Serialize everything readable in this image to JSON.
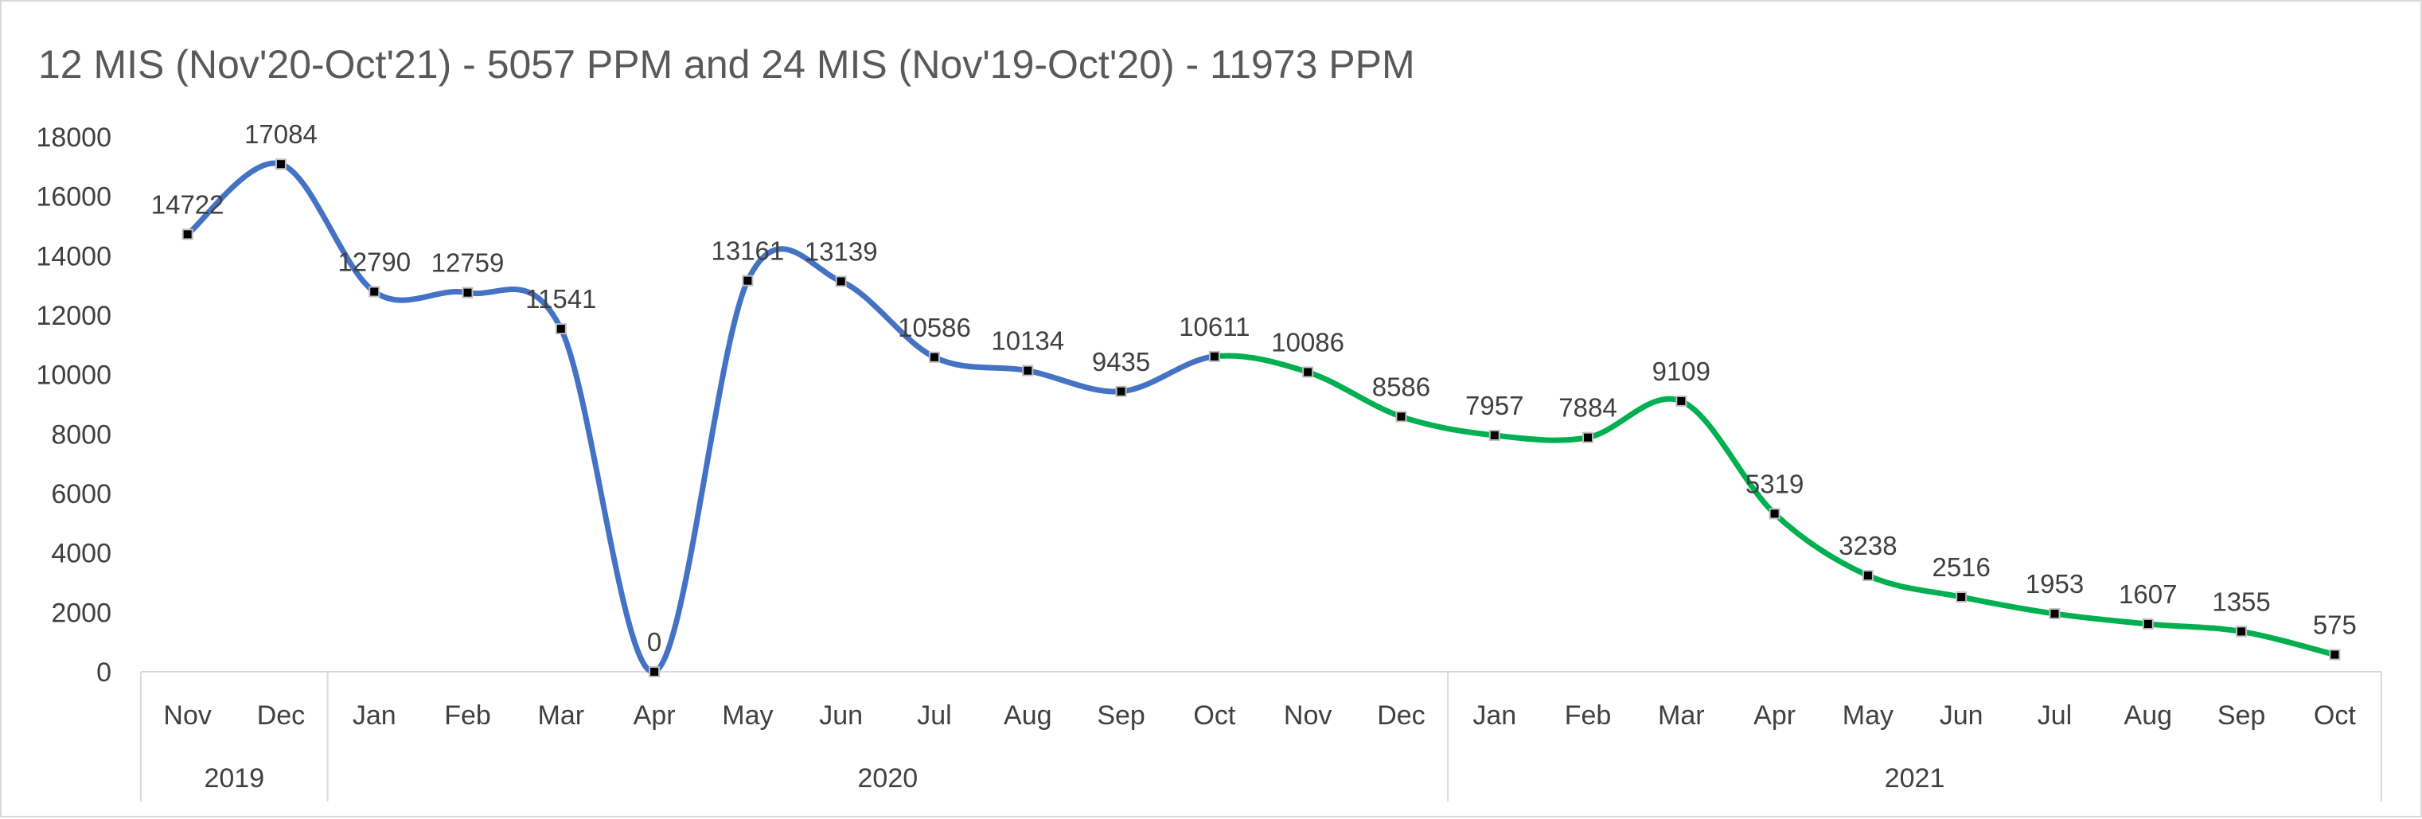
{
  "chart_data": {
    "type": "line",
    "title": "12 MIS (Nov'20-Oct'21) - 5057 PPM and 24 MIS (Nov'19-Oct'20) - 11973 PPM",
    "xlabel": "",
    "ylabel": "",
    "ylim": [
      0,
      18000
    ],
    "yticks": [
      "0",
      "2000",
      "4000",
      "6000",
      "8000",
      "10000",
      "12000",
      "14000",
      "16000",
      "18000"
    ],
    "grid": false,
    "legend": "none",
    "smooth": true,
    "categories": [
      "Nov",
      "Dec",
      "Jan",
      "Feb",
      "Mar",
      "Apr",
      "May",
      "Jun",
      "Jul",
      "Aug",
      "Sep",
      "Oct",
      "Nov",
      "Dec",
      "Jan",
      "Feb",
      "Mar",
      "Apr",
      "May",
      "Jun",
      "Jul",
      "Aug",
      "Sep",
      "Oct"
    ],
    "year_groups": [
      {
        "label": "2019",
        "count": 2
      },
      {
        "label": "2020",
        "count": 12
      },
      {
        "label": "2021",
        "count": 10
      }
    ],
    "values": [
      14722,
      17084,
      12790,
      12759,
      11541,
      0,
      13161,
      13139,
      10586,
      10134,
      9435,
      10611,
      10086,
      8586,
      7957,
      7884,
      9109,
      5319,
      3238,
      2516,
      1953,
      1607,
      1355,
      575
    ],
    "series_colors": {
      "first_period": "#4472c4",
      "second_period": "#00b050"
    },
    "color_split_after_index": 11
  }
}
